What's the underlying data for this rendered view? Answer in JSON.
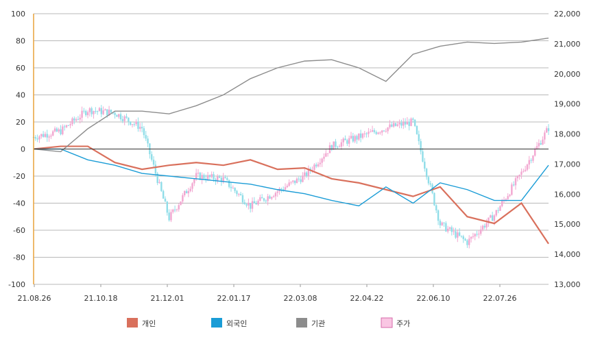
{
  "chart_data": {
    "type": "line",
    "title": "",
    "xlabel": "",
    "ylabel": "",
    "x_tick_labels": [
      "21.08.26",
      "21.10.18",
      "21.12.01",
      "22.01.17",
      "22.03.08",
      "22.04.22",
      "22.06.10",
      "22.07.26"
    ],
    "left_axis": {
      "ylim": [
        -100,
        100
      ],
      "ticks": [
        "100",
        "80",
        "60",
        "40",
        "20",
        "0",
        "-20",
        "-40",
        "-60",
        "-80",
        "-100"
      ]
    },
    "right_axis": {
      "ylim": [
        13000,
        22000
      ],
      "ticks": [
        "22,000",
        "21,000",
        "20,000",
        "19,000",
        "18,000",
        "17,000",
        "16,000",
        "15,000",
        "14,000",
        "13,000"
      ]
    },
    "grid": true,
    "legend_position": "bottom",
    "x_positions": [
      0,
      14,
      28,
      42,
      56,
      70,
      84,
      98,
      112,
      126,
      140,
      154,
      168,
      182,
      196,
      210,
      224,
      238,
      252,
      266
    ],
    "series": [
      {
        "name": "개인",
        "color": "#d9705c",
        "axis": "left",
        "values": [
          0,
          2,
          2,
          -10,
          -15,
          -12,
          -10,
          -12,
          -8,
          -15,
          -14,
          -22,
          -25,
          -30,
          -35,
          -28,
          -50,
          -55,
          -40,
          -70
        ]
      },
      {
        "name": "외국인",
        "color": "#1a9cd6",
        "axis": "left",
        "values": [
          0,
          0,
          -8,
          -12,
          -18,
          -20,
          -22,
          -24,
          -26,
          -30,
          -33,
          -38,
          -42,
          -28,
          -40,
          -25,
          -30,
          -38,
          -38,
          -12
        ]
      },
      {
        "name": "기관",
        "color": "#8c8c8c",
        "axis": "left",
        "values": [
          0,
          -2,
          15,
          28,
          28,
          26,
          32,
          40,
          52,
          60,
          65,
          66,
          60,
          50,
          70,
          76,
          79,
          78,
          79,
          82
        ]
      },
      {
        "name": "주가",
        "color": "#f7b3d8",
        "axis": "right",
        "type": "candlestick",
        "values": [
          17900,
          18100,
          18800,
          18700,
          18200,
          15200,
          16600,
          16500,
          15600,
          16100,
          16600,
          17600,
          17900,
          18200,
          18400,
          15000,
          14400,
          15300,
          16700,
          18200
        ]
      }
    ]
  }
}
